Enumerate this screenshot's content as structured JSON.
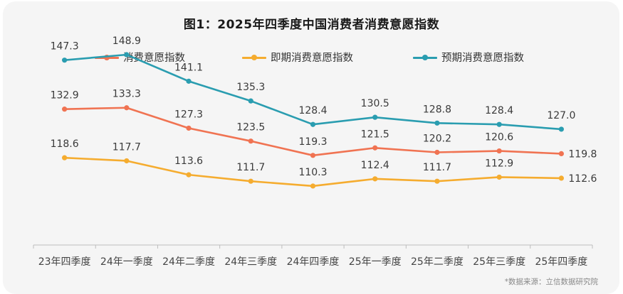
{
  "title": "图1：2025年四季度中国消费者消费意愿指数",
  "source": "*数据来源：立信数据研究院",
  "chart_data": {
    "type": "line",
    "title": "图1：2025年四季度中国消费者消费意愿指数",
    "categories": [
      "23年四季度",
      "24年一季度",
      "24年二季度",
      "24年三季度",
      "24年四季度",
      "25年一季度",
      "25年二季度",
      "25年三季度",
      "25年四季度"
    ],
    "series": [
      {
        "name": "消费意愿指数",
        "color": "#f07352",
        "values": [
          132.9,
          133.3,
          127.3,
          123.5,
          119.3,
          121.5,
          120.2,
          120.6,
          119.8
        ]
      },
      {
        "name": "即期消费意愿指数",
        "color": "#f5ac2f",
        "values": [
          118.6,
          117.7,
          113.6,
          111.7,
          110.3,
          112.4,
          111.7,
          112.9,
          112.6
        ]
      },
      {
        "name": "预期消费意愿指数",
        "color": "#2a9db0",
        "values": [
          147.3,
          148.9,
          141.1,
          135.3,
          128.4,
          130.5,
          128.8,
          128.4,
          127.0
        ]
      }
    ],
    "ylim": [
      94,
      156
    ],
    "grid": false,
    "legend_position": "top"
  }
}
